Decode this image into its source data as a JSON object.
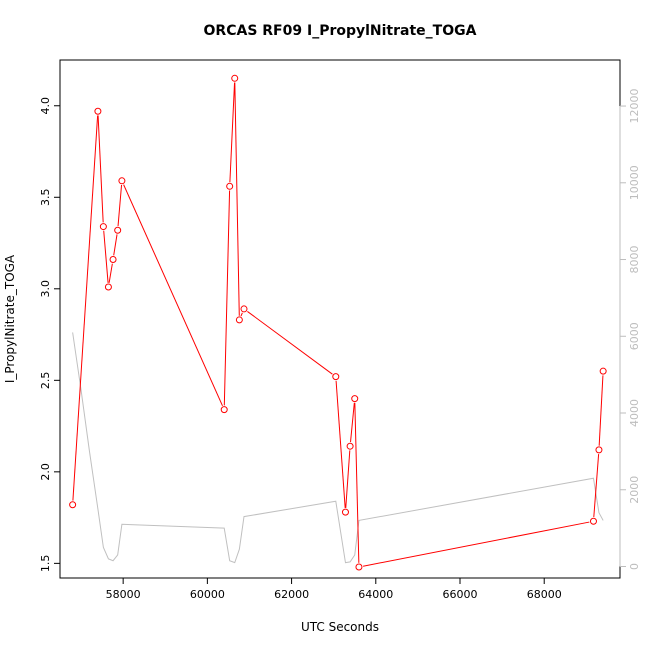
{
  "chart_data": {
    "type": "line",
    "title": "ORCAS RF09 I_PropylNitrate_TOGA",
    "xlabel": "UTC Seconds",
    "ylabel": "I_PropylNitrate_TOGA",
    "xlim": [
      56500,
      69800
    ],
    "ylim": [
      1.42,
      4.25
    ],
    "y2lim": [
      -300,
      13200
    ],
    "x_ticks": [
      58000,
      60000,
      62000,
      64000,
      66000,
      68000
    ],
    "y_ticks": [
      1.5,
      2.0,
      2.5,
      3.0,
      3.5,
      4.0
    ],
    "y2_ticks": [
      0,
      2000,
      4000,
      6000,
      8000,
      10000,
      12000
    ],
    "grid": false,
    "legend": "none",
    "colors": {
      "primary": "#ff0000",
      "secondary": "#c0c0c0",
      "frame": "#000000",
      "right_axis": "#bdbdbd"
    },
    "series": [
      {
        "role": "primary",
        "style": "line-with-open-circles",
        "color": "#ff0000",
        "x": [
          56800,
          57400,
          57530,
          57650,
          57760,
          57870,
          57970,
          60400,
          60530,
          60650,
          60760,
          60870,
          63050,
          63280,
          63390,
          63500,
          63600,
          69170,
          69300,
          69400
        ],
        "y": [
          1.82,
          3.97,
          3.34,
          3.01,
          3.16,
          3.32,
          3.59,
          2.34,
          3.56,
          4.15,
          2.83,
          2.89,
          2.52,
          1.78,
          2.14,
          2.4,
          1.48,
          1.73,
          2.12,
          2.55
        ]
      },
      {
        "role": "secondary-right-axis",
        "style": "line",
        "color": "#c0c0c0",
        "x": [
          56800,
          57000,
          57200,
          57400,
          57530,
          57650,
          57760,
          57870,
          57970,
          60400,
          60530,
          60650,
          60760,
          60870,
          63050,
          63280,
          63390,
          63500,
          63600,
          69170,
          69300,
          69400
        ],
        "y": [
          6100,
          4600,
          3000,
          1500,
          500,
          200,
          150,
          300,
          1100,
          1000,
          150,
          100,
          450,
          1300,
          1700,
          100,
          120,
          300,
          1200,
          2300,
          1400,
          1200
        ]
      }
    ]
  }
}
